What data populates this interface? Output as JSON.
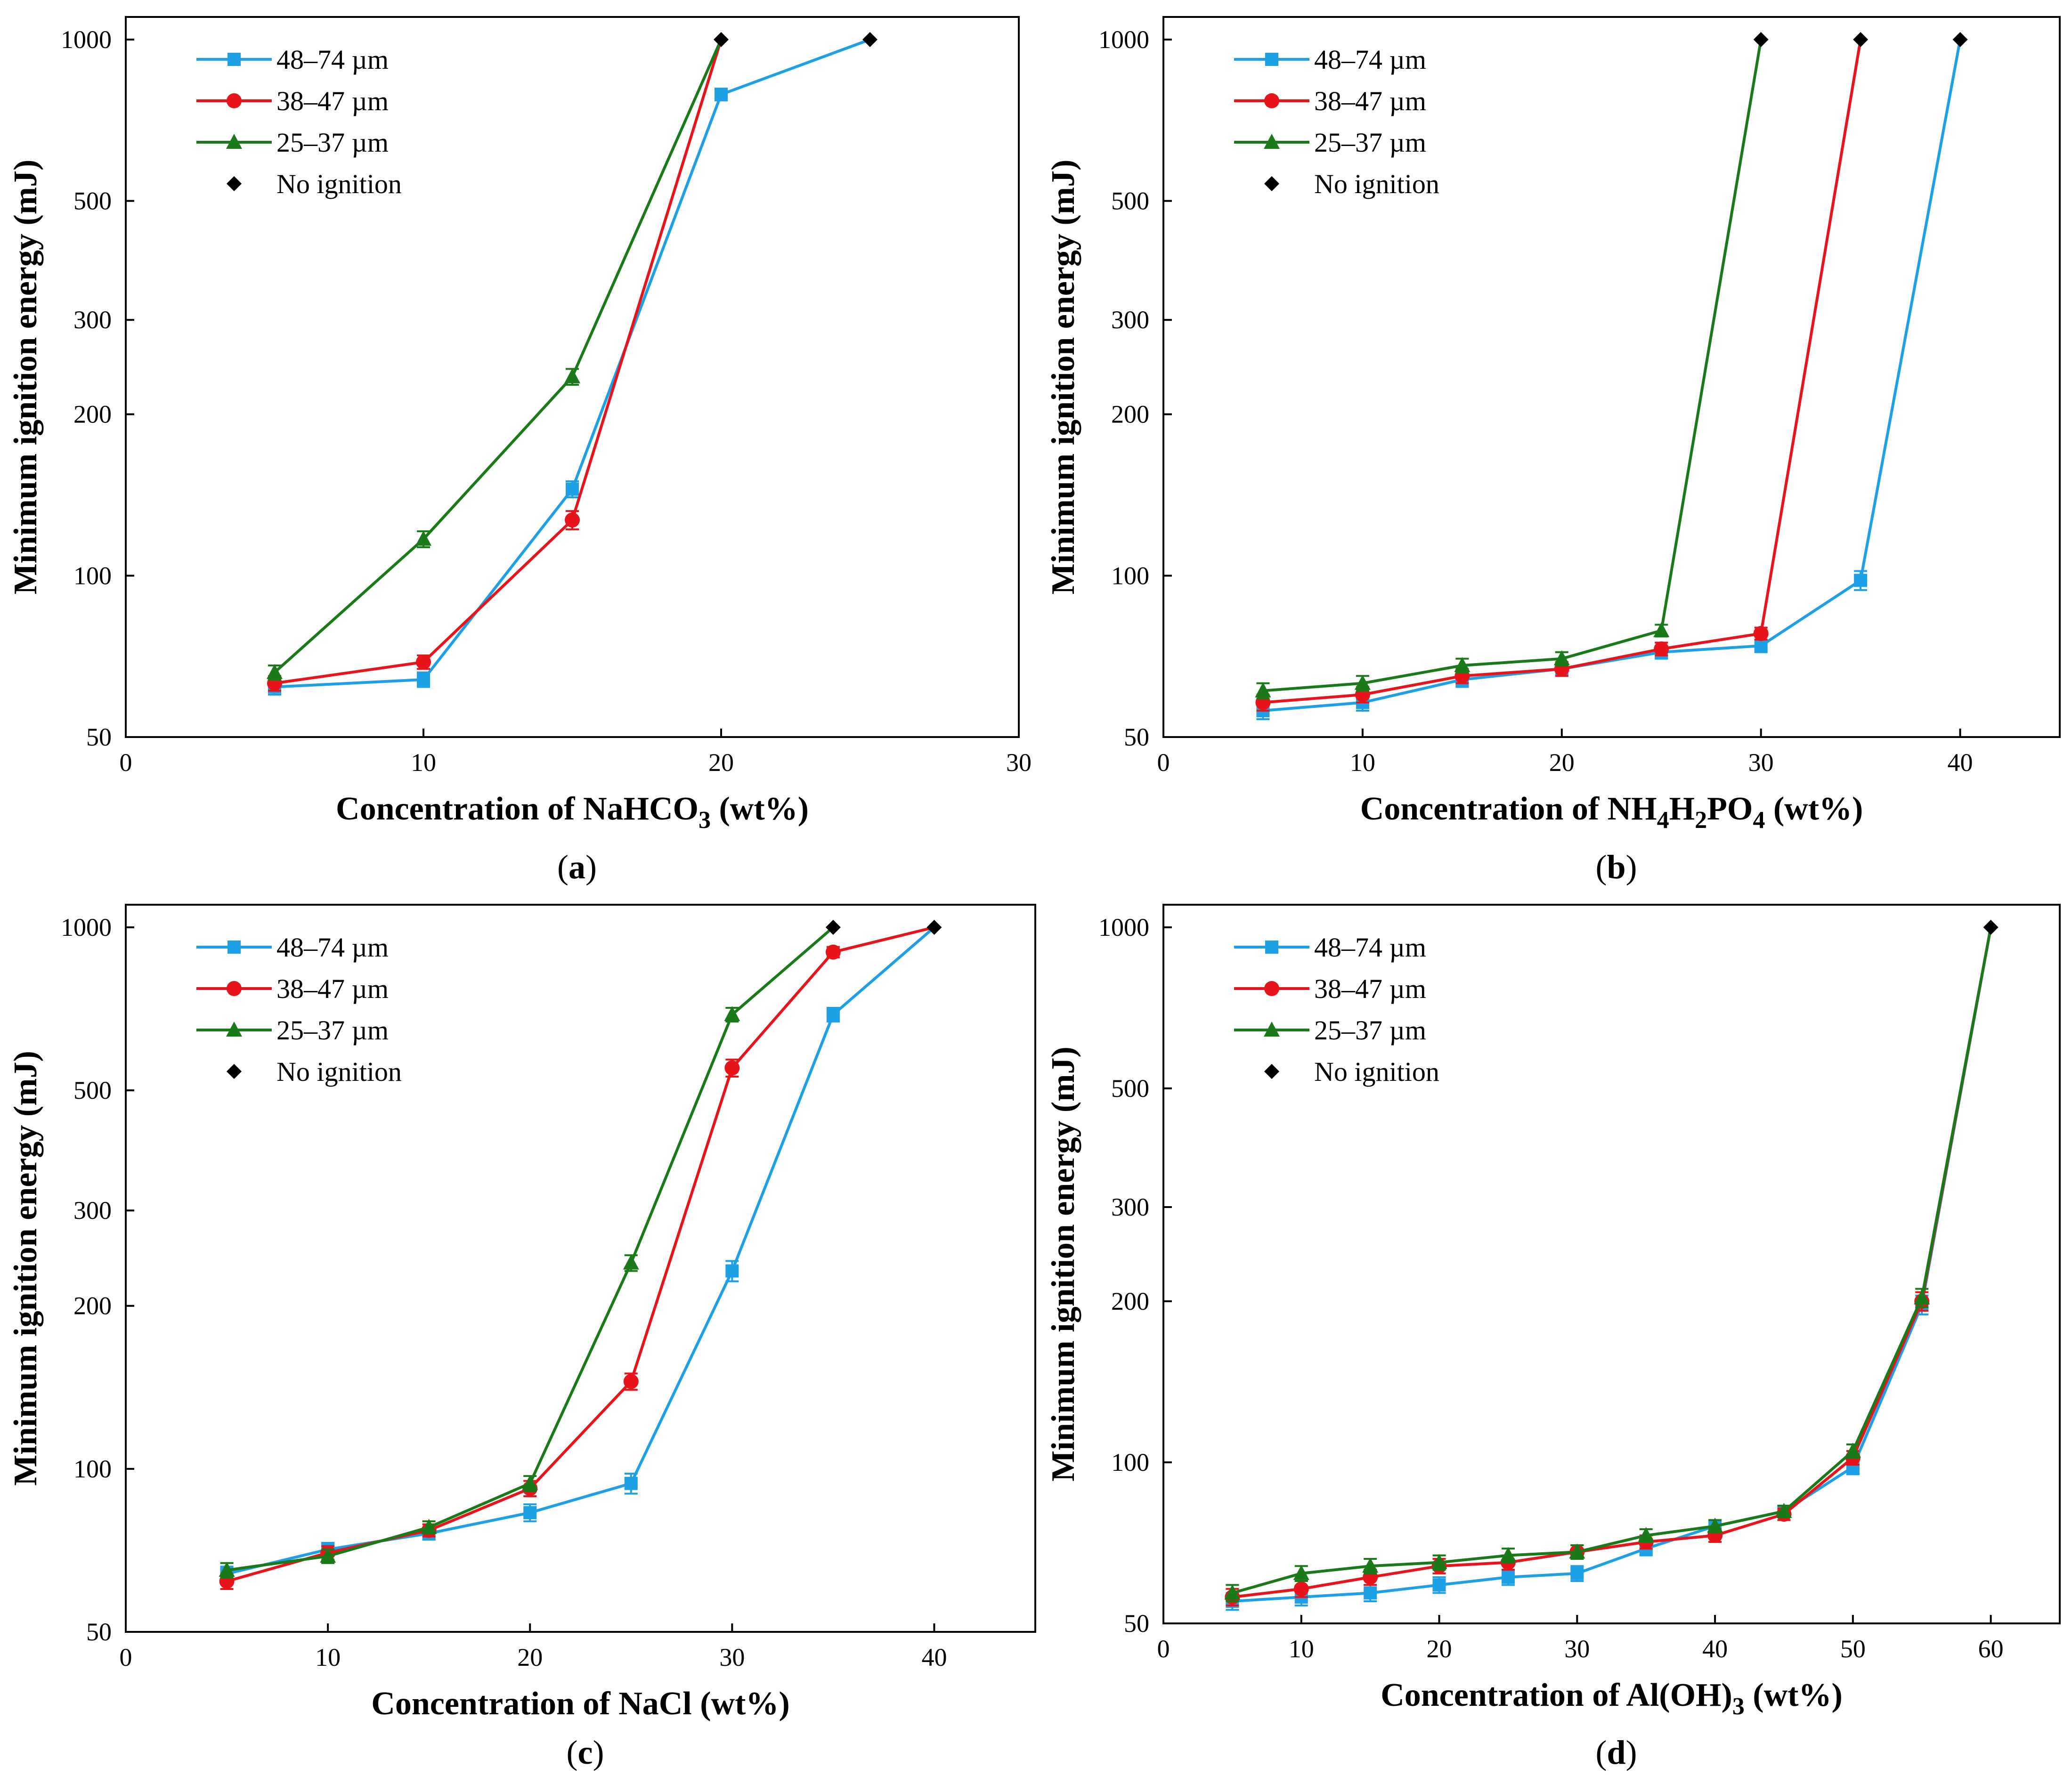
{
  "figure": {
    "legend_labels": [
      "48–74 µm",
      "38–47 µm",
      "25–37 µm",
      "No ignition"
    ],
    "series_colors": {
      "48–74 µm": "#1ea0e6",
      "38–47 µm": "#e8141c",
      "25–37 µm": "#1a7a1a",
      "No ignition": "#000000"
    }
  },
  "chart_data": [
    {
      "type": "line",
      "panel": "a",
      "caption": "(a)",
      "xlabel_main": "Concentration of NaHCO",
      "xlabel_sub": "3",
      "xlabel_tail": " (wt%)",
      "ylabel": "Minimum ignition energy (mJ)",
      "yscale": "log",
      "xlim": [
        0,
        30
      ],
      "ylim": [
        50,
        1000
      ],
      "xticks": [
        0,
        10,
        20,
        30
      ],
      "yticks": [
        50,
        100,
        200,
        300,
        500,
        1000
      ],
      "legend_position": "top-left",
      "series": [
        {
          "name": "48–74 µm",
          "x": [
            5,
            10,
            15,
            20,
            25
          ],
          "y": [
            62,
            64,
            145,
            790,
            1000
          ],
          "err": [
            2,
            2,
            5,
            20,
            0
          ]
        },
        {
          "name": "38–47 µm",
          "x": [
            5,
            10,
            15,
            20
          ],
          "y": [
            63,
            69,
            127,
            1000
          ],
          "err": [
            2,
            2,
            5,
            0
          ]
        },
        {
          "name": "25–37 µm",
          "x": [
            5,
            10,
            15,
            20
          ],
          "y": [
            66,
            117,
            235,
            1000
          ],
          "err": [
            2,
            4,
            8,
            0
          ]
        }
      ],
      "no_ignition": {
        "x": [
          20,
          25
        ],
        "y": [
          1000,
          1000
        ]
      }
    },
    {
      "type": "line",
      "panel": "b",
      "caption": "(b)",
      "xlabel_main": "Concentration of NH",
      "xlabel_sub": "4",
      "xlabel_mid": "H",
      "xlabel_sub2": "2",
      "xlabel_mid2": "PO",
      "xlabel_sub3": "4",
      "xlabel_tail": " (wt%)",
      "ylabel": "Minimum ignition energy (mJ)",
      "yscale": "log",
      "xlim": [
        0,
        45
      ],
      "ylim": [
        50,
        1000
      ],
      "xticks": [
        0,
        10,
        20,
        30,
        40
      ],
      "yticks": [
        50,
        100,
        200,
        300,
        500,
        1000
      ],
      "legend_position": "top-left",
      "series": [
        {
          "name": "48–74 µm",
          "x": [
            5,
            10,
            15,
            20,
            25,
            30,
            35,
            40
          ],
          "y": [
            56,
            58,
            64,
            67,
            72,
            74,
            98,
            1000
          ],
          "err": [
            2,
            2,
            2,
            2,
            2,
            2,
            4,
            0
          ]
        },
        {
          "name": "38–47 µm",
          "x": [
            5,
            10,
            15,
            20,
            25,
            30,
            35
          ],
          "y": [
            58,
            60,
            65,
            67,
            73,
            78,
            1000
          ],
          "err": [
            2,
            2,
            2,
            2,
            2,
            2,
            0
          ]
        },
        {
          "name": "25–37 µm",
          "x": [
            5,
            10,
            15,
            20,
            25,
            30
          ],
          "y": [
            61,
            63,
            68,
            70,
            79,
            1000
          ],
          "err": [
            2,
            2,
            2,
            2,
            2,
            0
          ]
        }
      ],
      "no_ignition": {
        "x": [
          30,
          35,
          40
        ],
        "y": [
          1000,
          1000,
          1000
        ]
      }
    },
    {
      "type": "line",
      "panel": "c",
      "caption": "(c)",
      "xlabel_main": "Concentration of NaCl",
      "xlabel_tail": " (wt%)",
      "ylabel": "Minimum ignition energy (mJ)",
      "yscale": "log",
      "xlim": [
        0,
        45
      ],
      "ylim": [
        50,
        1000
      ],
      "xticks": [
        0,
        10,
        20,
        30,
        40
      ],
      "yticks": [
        50,
        100,
        200,
        300,
        500,
        1000
      ],
      "legend_position": "top-left",
      "series": [
        {
          "name": "48–74 µm",
          "x": [
            5,
            10,
            15,
            20,
            25,
            30,
            35,
            40
          ],
          "y": [
            64,
            71,
            76,
            83,
            94,
            232,
            690,
            1000
          ],
          "err": [
            2,
            2,
            2,
            3,
            4,
            10,
            20,
            0
          ]
        },
        {
          "name": "38–47 µm",
          "x": [
            5,
            10,
            15,
            20,
            25,
            30,
            35,
            40
          ],
          "y": [
            62,
            70,
            77,
            92,
            145,
            550,
            900,
            1000
          ],
          "err": [
            2,
            2,
            2,
            3,
            5,
            20,
            20,
            0
          ]
        },
        {
          "name": "25–37 µm",
          "x": [
            5,
            10,
            15,
            20,
            25,
            30,
            35
          ],
          "y": [
            65,
            69,
            78,
            94,
            240,
            690,
            1000
          ],
          "err": [
            2,
            2,
            2,
            3,
            8,
            20,
            0
          ]
        }
      ],
      "no_ignition": {
        "x": [
          35,
          40
        ],
        "y": [
          1000,
          1000
        ]
      }
    },
    {
      "type": "line",
      "panel": "d",
      "caption": "(d)",
      "xlabel_main": "Concentration of Al(OH)",
      "xlabel_sub": "3",
      "xlabel_tail": " (wt%)",
      "ylabel": "Minimum ignition energy (mJ)",
      "yscale": "log",
      "xlim": [
        0,
        65
      ],
      "ylim": [
        50,
        1000
      ],
      "xticks": [
        0,
        10,
        20,
        30,
        40,
        50,
        60
      ],
      "yticks": [
        50,
        100,
        200,
        300,
        500,
        1000
      ],
      "legend_position": "top-left",
      "series": [
        {
          "name": "48–74 µm",
          "x": [
            5,
            10,
            15,
            20,
            25,
            30,
            35,
            40,
            45,
            50,
            55,
            60
          ],
          "y": [
            55,
            56,
            57,
            59,
            61,
            62,
            69,
            76,
            81,
            98,
            197,
            1000
          ],
          "err": [
            2,
            2,
            2,
            2,
            2,
            2,
            2,
            2,
            2,
            3,
            8,
            0
          ]
        },
        {
          "name": "38–47 µm",
          "x": [
            5,
            10,
            15,
            20,
            25,
            30,
            35,
            40,
            45,
            50,
            55,
            60
          ],
          "y": [
            56,
            58,
            61,
            64,
            65,
            68,
            71,
            73,
            80,
            102,
            200,
            1000
          ],
          "err": [
            2,
            2,
            2,
            2,
            2,
            2,
            2,
            2,
            2,
            3,
            8,
            0
          ]
        },
        {
          "name": "25–37 µm",
          "x": [
            5,
            10,
            15,
            20,
            25,
            30,
            35,
            40,
            45,
            50,
            55,
            60
          ],
          "y": [
            57,
            62,
            64,
            65,
            67,
            68,
            73,
            76,
            81,
            105,
            203,
            1000
          ],
          "err": [
            2,
            2,
            2,
            2,
            2,
            2,
            2,
            2,
            2,
            3,
            8,
            0
          ]
        }
      ],
      "no_ignition": {
        "x": [
          60
        ],
        "y": [
          1000
        ]
      }
    }
  ]
}
